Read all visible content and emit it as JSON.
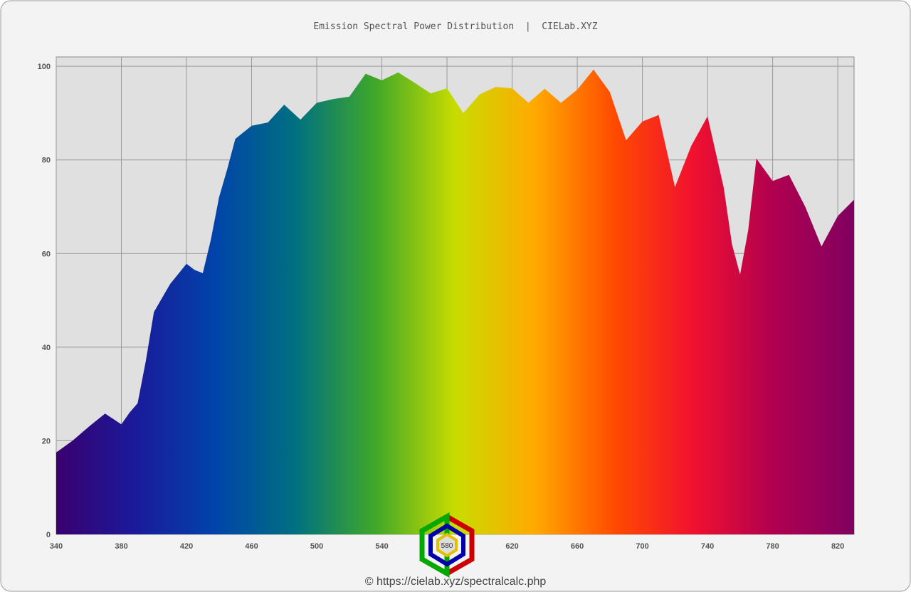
{
  "chart_data": {
    "type": "area",
    "title": "Emission Spectral Power Distribution  |  CIELab.XYZ",
    "footer": "© https://cielab.xyz/spectralcalc.php",
    "logo_label": "580",
    "x": [
      340,
      350,
      360,
      370,
      380,
      385,
      390,
      395,
      400,
      410,
      420,
      425,
      430,
      435,
      440,
      445,
      450,
      460,
      470,
      480,
      490,
      500,
      510,
      520,
      530,
      540,
      550,
      560,
      570,
      580,
      590,
      600,
      610,
      620,
      630,
      640,
      650,
      660,
      670,
      680,
      690,
      700,
      710,
      720,
      730,
      740,
      750,
      755,
      760,
      765,
      770,
      780,
      790,
      800,
      810,
      820,
      830
    ],
    "values": [
      17.5,
      20,
      23,
      25.8,
      23.5,
      26,
      28,
      37,
      47.5,
      53.5,
      57.8,
      56.5,
      55.8,
      63,
      72,
      78,
      84.5,
      87.3,
      88,
      91.8,
      88.6,
      92.2,
      93,
      93.5,
      98.4,
      97,
      98.7,
      96.5,
      94.2,
      95.3,
      90,
      94,
      95.6,
      95.3,
      92.2,
      95.2,
      92.2,
      95,
      99.3,
      94.5,
      84.2,
      88.2,
      89.6,
      74.2,
      83,
      89.3,
      74,
      62,
      55.5,
      65,
      80.3,
      75.5,
      76.8,
      70,
      61.5,
      68,
      71.5
    ],
    "colors": [
      "#3a0070",
      "#1a1a9a",
      "#0044aa",
      "#007080",
      "#40a828",
      "#c8dc00",
      "#ffaa00",
      "#ff4a00",
      "#f01030",
      "#b00050",
      "#800060"
    ],
    "xlim": [
      340,
      830
    ],
    "ylim": [
      0,
      102
    ],
    "xticks": [
      340,
      380,
      420,
      460,
      500,
      540,
      580,
      620,
      660,
      700,
      740,
      780,
      820
    ],
    "yticks": [
      0,
      20,
      40,
      60,
      80,
      100
    ],
    "grid": true
  }
}
